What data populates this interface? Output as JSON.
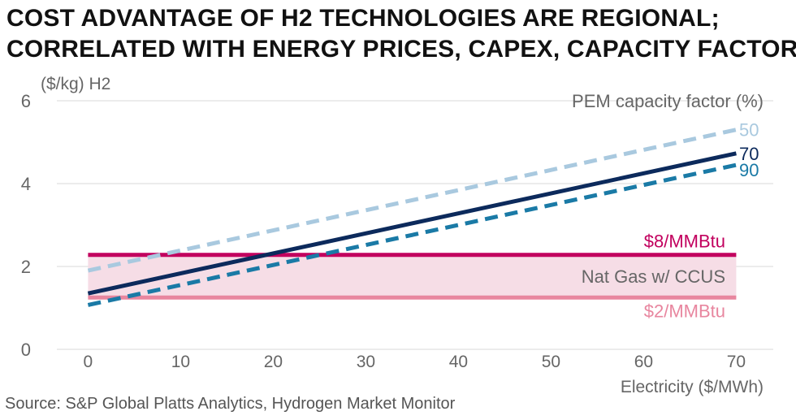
{
  "title_line1": "COST ADVANTAGE OF H2 TECHNOLOGIES ARE REGIONAL;",
  "title_line2": "CORRELATED WITH ENERGY PRICES, CAPEX, CAPACITY FACTOR",
  "source": "Source: S&P Global Platts Analytics, Hydrogen Market Monitor",
  "colors": {
    "pem50": "#a9c9df",
    "pem70": "#0c2a5c",
    "pem90": "#1a7aa6",
    "gas8": "#c2005e",
    "gas2": "#e8869f",
    "band": "#f6dde6",
    "grid": "#d9d9d9",
    "axis_text": "#666666"
  },
  "chart_data": {
    "type": "line",
    "ylabel": "($/kg) H2",
    "xlabel": "Electricity ($/MWh)",
    "xlim": [
      -6,
      74
    ],
    "ylim": [
      0,
      6
    ],
    "x_ticks": [
      0,
      10,
      20,
      30,
      40,
      50,
      60,
      70
    ],
    "y_ticks": [
      0,
      2,
      4,
      6
    ],
    "grid": "horizontal",
    "legend_title": "PEM capacity factor (%)",
    "series": [
      {
        "name": "50",
        "style": "dashed",
        "color_key": "pem50",
        "x": [
          0,
          70
        ],
        "y": [
          1.9,
          5.3
        ]
      },
      {
        "name": "70",
        "style": "solid",
        "color_key": "pem70",
        "x": [
          0,
          70
        ],
        "y": [
          1.35,
          4.73
        ]
      },
      {
        "name": "90",
        "style": "dashed",
        "color_key": "pem90",
        "x": [
          0,
          70
        ],
        "y": [
          1.07,
          4.45
        ]
      },
      {
        "name": "$8/MMBtu",
        "style": "solid",
        "color_key": "gas8",
        "x": [
          0,
          70
        ],
        "y": [
          2.28,
          2.28
        ]
      },
      {
        "name": "$2/MMBtu",
        "style": "solid",
        "color_key": "gas2",
        "x": [
          0,
          70
        ],
        "y": [
          1.25,
          1.25
        ]
      }
    ],
    "band": {
      "label": "Nat Gas w/ CCUS",
      "y_low": 1.25,
      "y_high": 2.28,
      "x": [
        0,
        70
      ]
    }
  }
}
